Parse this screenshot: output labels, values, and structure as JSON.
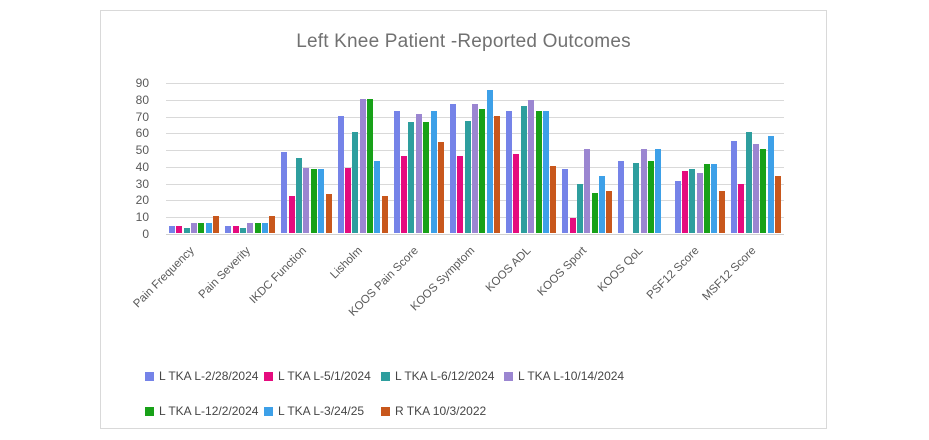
{
  "title": "Left Knee Patient -Reported Outcomes",
  "chart_data": {
    "type": "bar",
    "title": "Left Knee Patient -Reported Outcomes",
    "categories": [
      "Pain Frequency",
      "Pain Severity",
      "IKDC Function",
      "Lisholm",
      "KOOS Pain Score",
      "KOOS Symptom",
      "KOOS ADL",
      "KOOS Sport",
      "KOOS QoL",
      "PSF12 Score",
      "MSF12 Score"
    ],
    "series": [
      {
        "name": "L TKA L-2/28/2024",
        "color": "#7583e8",
        "values": [
          4,
          4,
          48,
          70,
          73,
          77,
          73,
          38,
          43,
          31,
          55
        ]
      },
      {
        "name": "L TKA L-5/1/2024",
        "color": "#e50b7e",
        "values": [
          4,
          4,
          22,
          39,
          46,
          46,
          47,
          9,
          null,
          37,
          29
        ]
      },
      {
        "name": "L TKA L-6/12/2024",
        "color": "#2e9e9e",
        "values": [
          3,
          3,
          45,
          60,
          66,
          67,
          76,
          29,
          42,
          38,
          60
        ]
      },
      {
        "name": "L TKA L-10/14/2024",
        "color": "#9b86d1",
        "values": [
          6,
          6,
          39,
          80,
          71,
          77,
          79,
          50,
          50,
          36,
          53
        ]
      },
      {
        "name": "L TKA L-12/2/2024",
        "color": "#18a118",
        "values": [
          6,
          6,
          38,
          80,
          66,
          74,
          73,
          24,
          43,
          41,
          50
        ]
      },
      {
        "name": "L TKA L-3/24/25",
        "color": "#3da0e8",
        "values": [
          6,
          6,
          38,
          43,
          73,
          85,
          73,
          34,
          50,
          41,
          58
        ]
      },
      {
        "name": "R TKA 10/3/2022",
        "color": "#c8571c",
        "values": [
          10,
          10,
          23,
          22,
          54,
          70,
          40,
          25,
          null,
          25,
          34
        ]
      }
    ],
    "ylim": [
      0,
      90
    ],
    "ytick_step": 10,
    "grid": true,
    "legend_position": "bottom",
    "legend_rows": [
      [
        0,
        1,
        2,
        3
      ],
      [
        4,
        5,
        6
      ]
    ]
  }
}
